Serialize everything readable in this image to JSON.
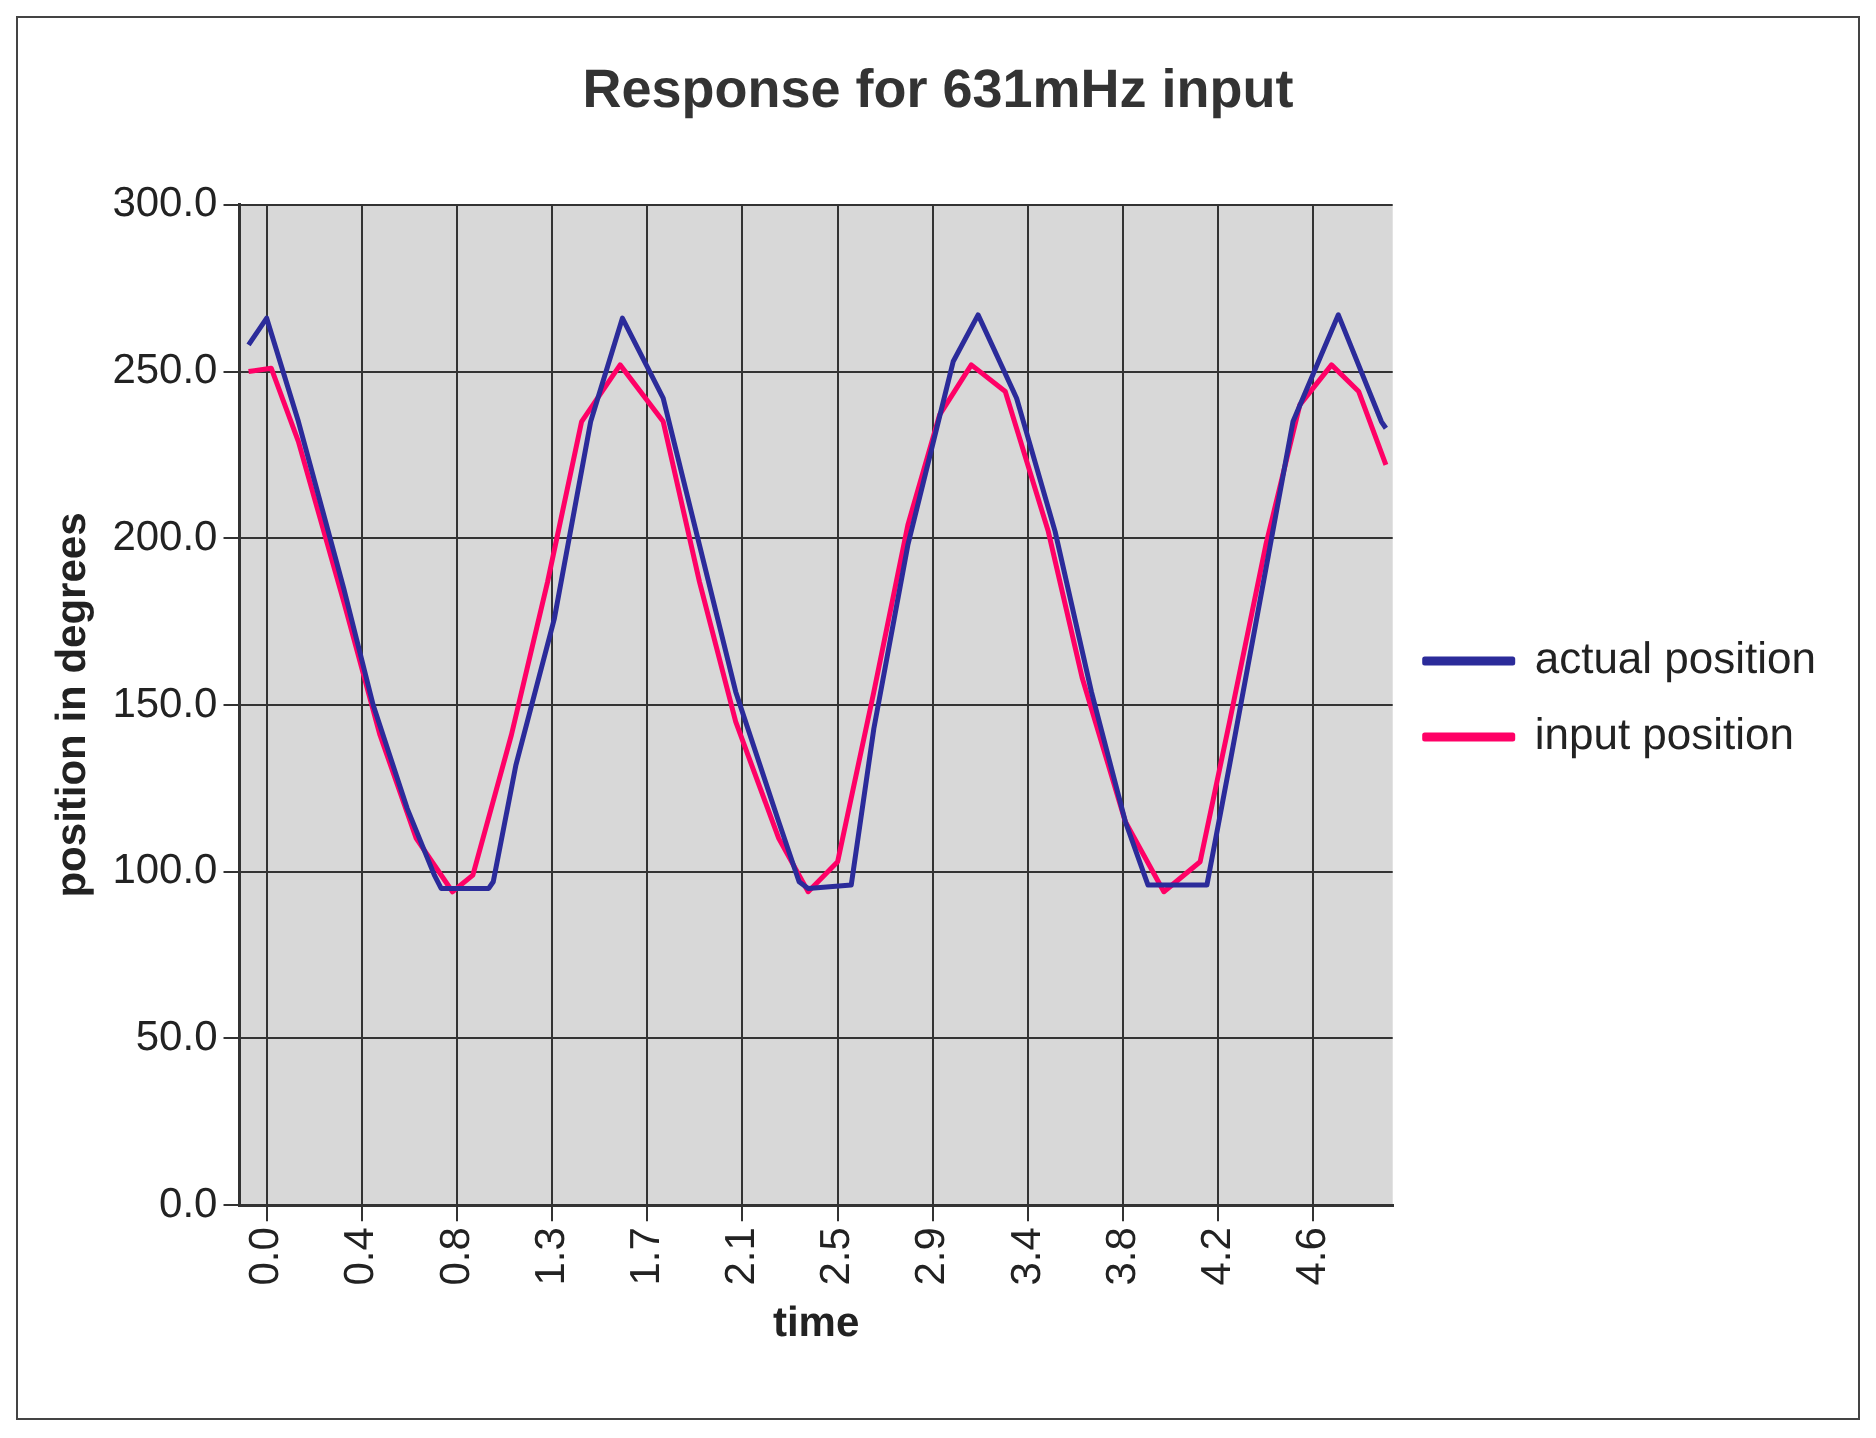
{
  "chart_data": {
    "type": "line",
    "title": "Response for 631mHz input",
    "xlabel": "time",
    "ylabel": "position in degrees",
    "xlim": [
      -0.12,
      4.97
    ],
    "xticks": [
      {
        "value": 0,
        "label": "0.0"
      },
      {
        "value": 0.42,
        "label": "0.4"
      },
      {
        "value": 0.84,
        "label": "0.8"
      },
      {
        "value": 1.26,
        "label": "1.3"
      },
      {
        "value": 1.68,
        "label": "1.7"
      },
      {
        "value": 2.1,
        "label": "2.1"
      },
      {
        "value": 2.52,
        "label": "2.5"
      },
      {
        "value": 2.94,
        "label": "2.9"
      },
      {
        "value": 3.36,
        "label": "3.4"
      },
      {
        "value": 3.78,
        "label": "3.8"
      },
      {
        "value": 4.2,
        "label": "4.2"
      },
      {
        "value": 4.62,
        "label": "4.6"
      }
    ],
    "ylim": [
      0,
      300
    ],
    "yticks": [
      {
        "value": 0,
        "label": "0.0"
      },
      {
        "value": 50,
        "label": "50.0"
      },
      {
        "value": 100,
        "label": "100.0"
      },
      {
        "value": 150,
        "label": "150.0"
      },
      {
        "value": 200,
        "label": "200.0"
      },
      {
        "value": 250,
        "label": "250.0"
      },
      {
        "value": 300,
        "label": "300.0"
      }
    ],
    "grid": true,
    "legend": "right",
    "marker": "none",
    "line_style": "solid",
    "series": [
      {
        "name": "actual position",
        "color": "#2b2b9a",
        "x": [
          -0.08,
          0,
          0.14,
          0.34,
          0.47,
          0.62,
          0.74,
          0.77,
          0.98,
          1.0,
          1.1,
          1.27,
          1.43,
          1.57,
          1.75,
          1.91,
          2.07,
          2.26,
          2.35,
          2.39,
          2.58,
          2.68,
          2.83,
          3.03,
          3.14,
          3.31,
          3.48,
          3.64,
          3.79,
          3.89,
          4.15,
          4.25,
          4.37,
          4.53,
          4.73,
          4.92,
          4.94
        ],
        "values": [
          258,
          266,
          235,
          185,
          150,
          119,
          99,
          95,
          95,
          97,
          132,
          176,
          235,
          266,
          242,
          198,
          154,
          115,
          97,
          95,
          96,
          143,
          198,
          253,
          267,
          242,
          202,
          154,
          115,
          96,
          96,
          132,
          176,
          235,
          267,
          235,
          233
        ]
      },
      {
        "name": "input position",
        "color": "#ff0066",
        "x": [
          -0.08,
          0.02,
          0.14,
          0.34,
          0.5,
          0.66,
          0.82,
          0.91,
          1.08,
          1.24,
          1.39,
          1.56,
          1.75,
          1.91,
          2.07,
          2.26,
          2.39,
          2.52,
          2.68,
          2.83,
          2.97,
          3.11,
          3.26,
          3.45,
          3.6,
          3.79,
          3.96,
          4.12,
          4.25,
          4.41,
          4.56,
          4.7,
          4.82,
          4.94
        ],
        "values": [
          250,
          251,
          229,
          181,
          141,
          110,
          94,
          99,
          141,
          187,
          235,
          252,
          235,
          187,
          145,
          110,
          94,
          103,
          154,
          204,
          237,
          252,
          244,
          202,
          158,
          115,
          94,
          103,
          145,
          198,
          240,
          252,
          244,
          222
        ]
      }
    ]
  }
}
